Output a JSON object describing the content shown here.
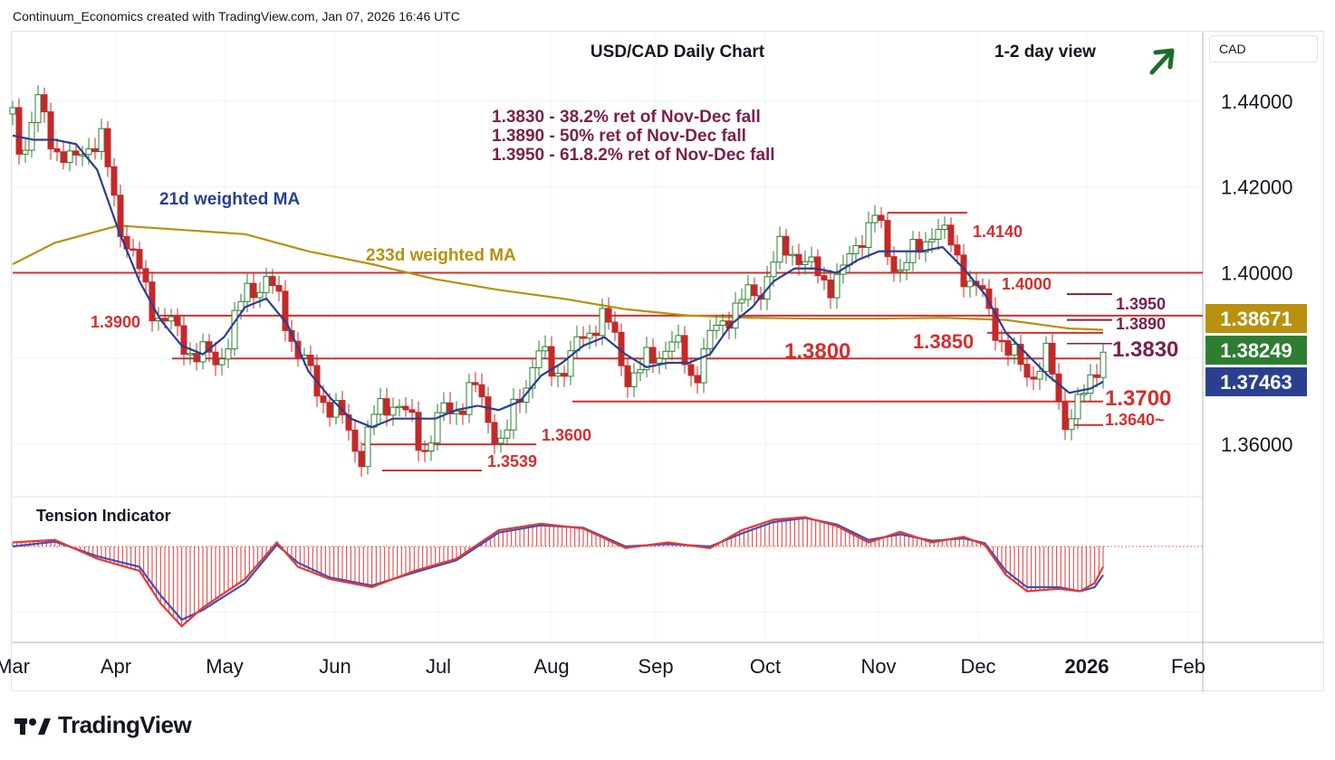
{
  "header": "Continuum_Economics created with TradingView.com, Jan 07, 2026 16:46 UTC",
  "currency": "CAD",
  "brand": "TradingView",
  "colors": {
    "up": "#2e7d32",
    "down": "#c62828",
    "ma21": "#2a3f8f",
    "ma233": "#b8900e",
    "level": "#d32f2f",
    "fib": "#7b1f4c",
    "arrow": "#1b6e2a",
    "tension_red": "#e53935",
    "tension_blue": "#3f51b5"
  },
  "chart_data": {
    "type": "candlestick",
    "title": "USD/CAD Daily Chart",
    "subtitle": "1-2 day view",
    "outlook_icon": "arrow-up-right-icon",
    "ylim": [
      1.348,
      1.456
    ],
    "y_ticks": [
      "1.44000",
      "1.42000",
      "1.40000",
      "1.36000"
    ],
    "x_labels": [
      "Mar",
      "Apr",
      "May",
      "Jun",
      "Jul",
      "Aug",
      "Sep",
      "Oct",
      "Nov",
      "Dec",
      "2026",
      "Feb"
    ],
    "notes": [
      "1.3830 - 38.2% ret of Nov-Dec fall",
      "1.3890 - 50% ret of Nov-Dec fall",
      "1.3950 - 61.8.2% ret of Nov-Dec fall"
    ],
    "ma_labels": {
      "ma21": "21d weighted MA",
      "ma233": "233d weighted MA"
    },
    "levels": [
      {
        "label": "1.4140",
        "value": 1.414
      },
      {
        "label": "1.4000",
        "value": 1.4
      },
      {
        "label": "1.3950",
        "value": 1.395
      },
      {
        "label": "1.3900",
        "value": 1.39
      },
      {
        "label": "1.3890",
        "value": 1.389
      },
      {
        "label": "1.3850",
        "value": 1.386
      },
      {
        "label": "1.3830",
        "value": 1.3835
      },
      {
        "label": "1.3800",
        "value": 1.38
      },
      {
        "label": "1.3700",
        "value": 1.37
      },
      {
        "label": "1.3640~",
        "value": 1.3645
      },
      {
        "label": "1.3600",
        "value": 1.36
      },
      {
        "label": "1.3539",
        "value": 1.3539
      }
    ],
    "price_tags": [
      {
        "label": "1.38671",
        "value": 1.38671,
        "color": "#b8900e"
      },
      {
        "label": "1.38249",
        "value": 1.38249,
        "color": "#2e7d32"
      },
      {
        "label": "1.37463",
        "value": 1.37463,
        "color": "#2a3f8f"
      }
    ],
    "close_path": [
      [
        0,
        1.437
      ],
      [
        5,
        1.428
      ],
      [
        12,
        1.439
      ],
      [
        20,
        1.43
      ],
      [
        28,
        1.424
      ],
      [
        35,
        1.431
      ],
      [
        42,
        1.43
      ],
      [
        50,
        1.413
      ],
      [
        58,
        1.402
      ],
      [
        65,
        1.393
      ],
      [
        72,
        1.389
      ],
      [
        80,
        1.384
      ],
      [
        88,
        1.381
      ],
      [
        96,
        1.379
      ],
      [
        104,
        1.387
      ],
      [
        112,
        1.397
      ],
      [
        120,
        1.398
      ],
      [
        128,
        1.391
      ],
      [
        136,
        1.38
      ],
      [
        144,
        1.373
      ],
      [
        152,
        1.368
      ],
      [
        160,
        1.362
      ],
      [
        165,
        1.358
      ],
      [
        172,
        1.367
      ],
      [
        180,
        1.371
      ],
      [
        188,
        1.365
      ],
      [
        194,
        1.359
      ],
      [
        202,
        1.366
      ],
      [
        210,
        1.369
      ],
      [
        218,
        1.373
      ],
      [
        226,
        1.366
      ],
      [
        232,
        1.359
      ],
      [
        240,
        1.372
      ],
      [
        248,
        1.381
      ],
      [
        256,
        1.377
      ],
      [
        264,
        1.38
      ],
      [
        272,
        1.386
      ],
      [
        278,
        1.391
      ],
      [
        284,
        1.385
      ],
      [
        290,
        1.377
      ],
      [
        296,
        1.376
      ],
      [
        302,
        1.38
      ],
      [
        310,
        1.384
      ],
      [
        316,
        1.381
      ],
      [
        322,
        1.376
      ],
      [
        330,
        1.384
      ],
      [
        338,
        1.391
      ],
      [
        346,
        1.393
      ],
      [
        354,
        1.397
      ],
      [
        362,
        1.404
      ],
      [
        370,
        1.406
      ],
      [
        378,
        1.4
      ],
      [
        386,
        1.398
      ],
      [
        394,
        1.4
      ],
      [
        402,
        1.41
      ],
      [
        408,
        1.413
      ],
      [
        414,
        1.404
      ],
      [
        420,
        1.402
      ],
      [
        428,
        1.404
      ],
      [
        436,
        1.412
      ],
      [
        442,
        1.407
      ],
      [
        448,
        1.403
      ],
      [
        454,
        1.397
      ],
      [
        460,
        1.393
      ],
      [
        466,
        1.387
      ],
      [
        472,
        1.38
      ],
      [
        478,
        1.378
      ],
      [
        484,
        1.377
      ],
      [
        490,
        1.38
      ],
      [
        496,
        1.368
      ],
      [
        500,
        1.366
      ],
      [
        504,
        1.369
      ],
      [
        508,
        1.371
      ],
      [
        512,
        1.379
      ],
      [
        516,
        1.382
      ]
    ],
    "ma21_path": [
      [
        0,
        1.432
      ],
      [
        10,
        1.431
      ],
      [
        20,
        1.431
      ],
      [
        30,
        1.43
      ],
      [
        40,
        1.424
      ],
      [
        50,
        1.41
      ],
      [
        60,
        1.398
      ],
      [
        70,
        1.389
      ],
      [
        80,
        1.383
      ],
      [
        90,
        1.381
      ],
      [
        100,
        1.385
      ],
      [
        110,
        1.392
      ],
      [
        120,
        1.394
      ],
      [
        130,
        1.388
      ],
      [
        140,
        1.377
      ],
      [
        150,
        1.371
      ],
      [
        160,
        1.366
      ],
      [
        170,
        1.364
      ],
      [
        180,
        1.366
      ],
      [
        190,
        1.366
      ],
      [
        200,
        1.366
      ],
      [
        210,
        1.368
      ],
      [
        220,
        1.369
      ],
      [
        230,
        1.368
      ],
      [
        240,
        1.37
      ],
      [
        250,
        1.376
      ],
      [
        260,
        1.379
      ],
      [
        270,
        1.383
      ],
      [
        280,
        1.385
      ],
      [
        290,
        1.381
      ],
      [
        300,
        1.378
      ],
      [
        310,
        1.379
      ],
      [
        320,
        1.379
      ],
      [
        330,
        1.381
      ],
      [
        340,
        1.388
      ],
      [
        350,
        1.392
      ],
      [
        360,
        1.398
      ],
      [
        370,
        1.401
      ],
      [
        380,
        1.401
      ],
      [
        390,
        1.4
      ],
      [
        400,
        1.403
      ],
      [
        410,
        1.405
      ],
      [
        420,
        1.405
      ],
      [
        430,
        1.405
      ],
      [
        440,
        1.406
      ],
      [
        450,
        1.401
      ],
      [
        460,
        1.395
      ],
      [
        470,
        1.386
      ],
      [
        480,
        1.381
      ],
      [
        490,
        1.376
      ],
      [
        500,
        1.372
      ],
      [
        510,
        1.373
      ],
      [
        516,
        1.3746
      ]
    ],
    "ma233_path": [
      [
        0,
        1.402
      ],
      [
        20,
        1.407
      ],
      [
        50,
        1.411
      ],
      [
        80,
        1.41
      ],
      [
        110,
        1.409
      ],
      [
        140,
        1.405
      ],
      [
        170,
        1.402
      ],
      [
        200,
        1.3985
      ],
      [
        230,
        1.396
      ],
      [
        260,
        1.394
      ],
      [
        290,
        1.3915
      ],
      [
        320,
        1.39
      ],
      [
        350,
        1.3895
      ],
      [
        380,
        1.3893
      ],
      [
        410,
        1.3893
      ],
      [
        440,
        1.3895
      ],
      [
        470,
        1.389
      ],
      [
        500,
        1.387
      ],
      [
        516,
        1.3867
      ]
    ],
    "tension": {
      "title": "Tension Indicator",
      "red_path": [
        [
          0,
          0.05
        ],
        [
          20,
          0.08
        ],
        [
          40,
          -0.15
        ],
        [
          60,
          -0.3
        ],
        [
          70,
          -0.7
        ],
        [
          80,
          -0.98
        ],
        [
          90,
          -0.75
        ],
        [
          110,
          -0.4
        ],
        [
          125,
          0.05
        ],
        [
          135,
          -0.25
        ],
        [
          150,
          -0.4
        ],
        [
          170,
          -0.5
        ],
        [
          190,
          -0.3
        ],
        [
          210,
          -0.15
        ],
        [
          230,
          0.2
        ],
        [
          250,
          0.28
        ],
        [
          270,
          0.22
        ],
        [
          290,
          -0.02
        ],
        [
          310,
          0.05
        ],
        [
          330,
          -0.02
        ],
        [
          345,
          0.2
        ],
        [
          360,
          0.33
        ],
        [
          375,
          0.36
        ],
        [
          390,
          0.25
        ],
        [
          405,
          0.05
        ],
        [
          420,
          0.18
        ],
        [
          435,
          0.05
        ],
        [
          450,
          0.12
        ],
        [
          460,
          0.02
        ],
        [
          470,
          -0.35
        ],
        [
          480,
          -0.55
        ],
        [
          495,
          -0.52
        ],
        [
          505,
          -0.55
        ],
        [
          512,
          -0.45
        ],
        [
          516,
          -0.25
        ]
      ],
      "blue_path": [
        [
          0,
          0.0
        ],
        [
          20,
          0.06
        ],
        [
          40,
          -0.12
        ],
        [
          60,
          -0.25
        ],
        [
          70,
          -0.6
        ],
        [
          80,
          -0.9
        ],
        [
          90,
          -0.78
        ],
        [
          110,
          -0.45
        ],
        [
          125,
          0.02
        ],
        [
          135,
          -0.2
        ],
        [
          150,
          -0.38
        ],
        [
          170,
          -0.48
        ],
        [
          190,
          -0.32
        ],
        [
          210,
          -0.17
        ],
        [
          230,
          0.17
        ],
        [
          250,
          0.26
        ],
        [
          270,
          0.23
        ],
        [
          290,
          0.0
        ],
        [
          310,
          0.03
        ],
        [
          330,
          0.0
        ],
        [
          345,
          0.16
        ],
        [
          360,
          0.3
        ],
        [
          375,
          0.35
        ],
        [
          390,
          0.27
        ],
        [
          405,
          0.08
        ],
        [
          420,
          0.15
        ],
        [
          435,
          0.07
        ],
        [
          450,
          0.1
        ],
        [
          460,
          0.04
        ],
        [
          470,
          -0.3
        ],
        [
          480,
          -0.5
        ],
        [
          495,
          -0.5
        ],
        [
          505,
          -0.55
        ],
        [
          512,
          -0.5
        ],
        [
          516,
          -0.35
        ]
      ]
    }
  }
}
